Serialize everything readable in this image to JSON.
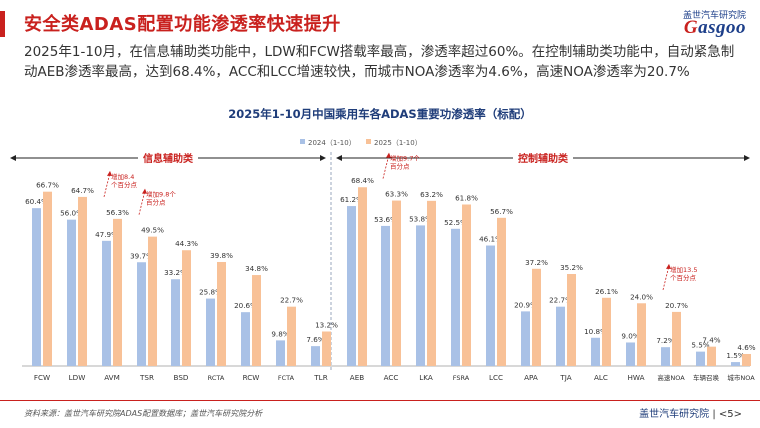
{
  "header": {
    "title": "安全类ADAS配置功能渗透率快速提升",
    "description": "2025年1-10月，在信息辅助类功能中，LDW和FCW搭载率最高，渗透率超过60%。在控制辅助类功能中，自动紧急制动AEB渗透率最高，达到68.4%，ACC和LCC增速较快，而城市NOA渗透率为4.6%，高速NOA渗透率为20.7%"
  },
  "logo": {
    "cn": "盖世汽车研究院",
    "en_first": "G",
    "en_rest": "asgoo"
  },
  "chart_data": {
    "type": "bar",
    "title": "2025年1-10月中国乘用车各ADAS重要功渗透率（标配）",
    "categories": [
      "FCW",
      "LDW",
      "AVM",
      "TSR",
      "BSD",
      "RCTA",
      "RCW",
      "FCTA",
      "TLR",
      "AEB",
      "ACC",
      "LKA",
      "FSRA",
      "LCC",
      "APA",
      "TJA",
      "ALC",
      "HWA",
      "高速NOA",
      "车辆召唤",
      "城市NOA"
    ],
    "series": [
      {
        "name": "2024（1-10）",
        "color": "#a9c1e6",
        "values": [
          60.4,
          56.0,
          47.9,
          39.7,
          33.2,
          25.8,
          20.6,
          9.8,
          7.6,
          61.2,
          53.6,
          53.8,
          52.5,
          46.1,
          20.9,
          22.7,
          10.8,
          9.0,
          7.2,
          5.5,
          1.5
        ]
      },
      {
        "name": "2025（1-10）",
        "color": "#f8c197",
        "values": [
          66.7,
          64.7,
          56.3,
          49.5,
          44.3,
          39.8,
          34.8,
          22.7,
          13.2,
          68.4,
          63.3,
          63.2,
          61.8,
          56.7,
          37.2,
          35.2,
          26.1,
          24.0,
          20.7,
          7.4,
          4.6
        ]
      }
    ],
    "value_labels": {
      "s2024": [
        "60.4%",
        "56.0%",
        "47.9%",
        "39.7%",
        "33.2%",
        "25.8%",
        "20.6%",
        "9.8%",
        "7.6%",
        "61.2%",
        "53.6%",
        "53.8%",
        "52.5%",
        "46.1%",
        "20.9%",
        "22.7%",
        "10.8%",
        "9.0%",
        "7.2%",
        "5.5%",
        "1.5%"
      ],
      "s2025": [
        "66.7%",
        "64.7%",
        "56.3%",
        "49.5%",
        "44.3%",
        "39.8%",
        "34.8%",
        "22.7%",
        "13.2%",
        "68.4%",
        "63.3%",
        "63.2%",
        "61.8%",
        "56.7%",
        "37.2%",
        "35.2%",
        "26.1%",
        "24.0%",
        "20.7%",
        "7.4%",
        "4.6%"
      ]
    },
    "groups": [
      {
        "label": "信息辅助类",
        "from": 0,
        "to": 8
      },
      {
        "label": "控制辅助类",
        "from": 9,
        "to": 20
      }
    ],
    "annotations": [
      {
        "index": 2,
        "line1": "增加8.4",
        "line2": "个百分点"
      },
      {
        "index": 3,
        "line1": "增加9.8个",
        "line2": "百分点"
      },
      {
        "index": 10,
        "line1": "增加9.7个",
        "line2": "百分点"
      },
      {
        "index": 18,
        "line1": "增加13.5",
        "line2": "个百分点"
      }
    ],
    "ylim": [
      0,
      75
    ],
    "grid": false,
    "legend_position": "top-center"
  },
  "footer": {
    "source": "资料来源：盖世汽车研究院ADAS配置数据库；盖世汽车研究院分析",
    "brand": "盖世汽车研究院",
    "page": "<5>"
  }
}
